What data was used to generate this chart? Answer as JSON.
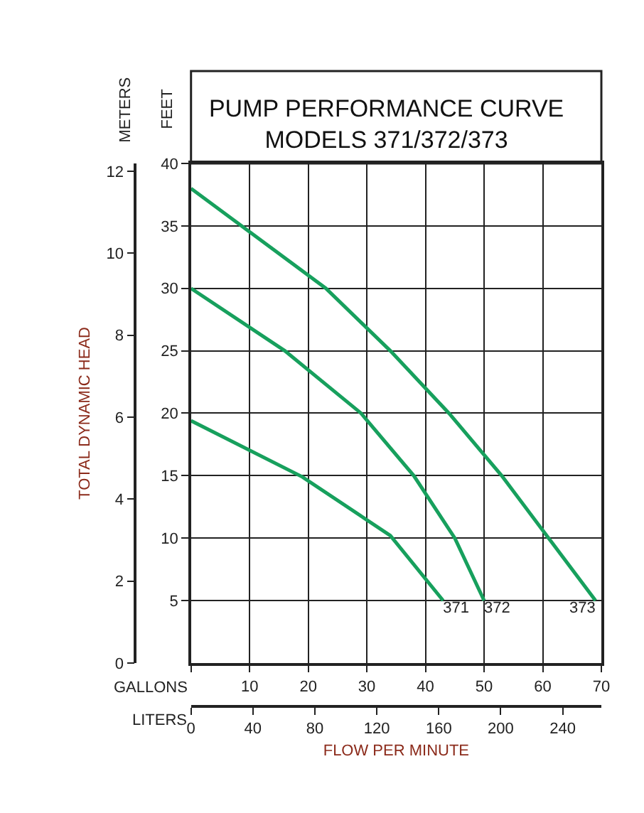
{
  "chart_data": {
    "type": "line",
    "title": "PUMP PERFORMANCE CURVE\nMODELS 371/372/373",
    "xlabel": "FLOW PER MINUTE",
    "ylabel": "TOTAL DYNAMIC HEAD",
    "annotations": [
      "GALLONS",
      "LITERS",
      "FEET",
      "METERS"
    ],
    "xlim": [
      0,
      70
    ],
    "xticks": [
      {
        "value": 0,
        "label": null
      },
      10,
      20,
      30,
      40,
      50,
      60,
      70
    ],
    "x2lim": [
      0,
      265
    ],
    "x2ticks": [
      0,
      40,
      80,
      120,
      160,
      200,
      240
    ],
    "ylim": [
      0,
      12.19
    ],
    "yticks": [
      0,
      2,
      4,
      6,
      8,
      10,
      12
    ],
    "y2lim": [
      0,
      40
    ],
    "y2ticks": [
      5,
      10,
      15,
      20,
      25,
      30,
      35,
      40
    ],
    "grid": true,
    "legend": false,
    "marker": "none",
    "line_style": "solid",
    "series": [
      {
        "name": "371",
        "color": "#17a05d",
        "axis": "y2",
        "x": [
          0,
          19,
          34,
          43
        ],
        "values": [
          19.4,
          14.9,
          10.2,
          5
        ]
      },
      {
        "name": "372",
        "color": "#17a05d",
        "axis": "y2",
        "x": [
          0,
          16,
          29,
          38,
          45,
          50
        ],
        "values": [
          30,
          25,
          20,
          15,
          10,
          5
        ]
      },
      {
        "name": "373",
        "color": "#17a05d",
        "axis": "y2",
        "x": [
          0,
          23,
          34,
          44,
          53,
          61,
          69
        ],
        "values": [
          38,
          30,
          25,
          20,
          15,
          10,
          5
        ]
      }
    ]
  }
}
